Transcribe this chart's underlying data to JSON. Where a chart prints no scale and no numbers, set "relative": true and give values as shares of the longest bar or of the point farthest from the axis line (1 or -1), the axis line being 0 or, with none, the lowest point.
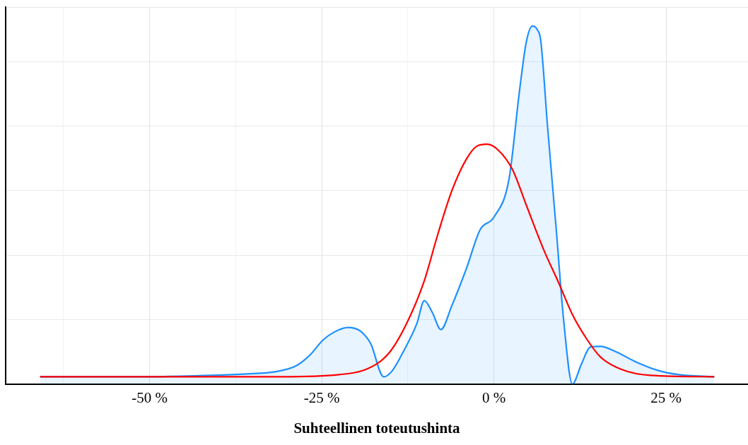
{
  "chart_data": {
    "type": "area",
    "xlabel": "Suhteellinen toteutushinta",
    "relative": true,
    "grid": true,
    "legend": false,
    "marker": "none",
    "xlim": [
      -70.9,
      36.9
    ],
    "xticks": [
      {
        "value": -62.5,
        "label": null
      },
      {
        "value": -50,
        "label": "-50 %"
      },
      {
        "value": -37.5,
        "label": null
      },
      {
        "value": -25,
        "label": "-25 %"
      },
      {
        "value": -12.5,
        "label": null
      },
      {
        "value": 0,
        "label": "0 %"
      },
      {
        "value": 12.5,
        "label": null
      },
      {
        "value": 25,
        "label": "25 %"
      }
    ],
    "series": [
      {
        "type": "area",
        "color": "#1e90ff",
        "x": [
          -65.9,
          -51.3,
          -41.0,
          -35.9,
          -31.8,
          -28.7,
          -26.7,
          -24.8,
          -23.1,
          -21.2,
          -19.4,
          -17.9,
          -16.0,
          -14.8,
          -13.3,
          -11.2,
          -10.1,
          -8.95,
          -7.7,
          -6.1,
          -4.0,
          -2.0,
          0,
          2.2,
          3.7,
          4.7,
          5.6,
          6.3,
          6.8,
          7.8,
          9.1,
          10.1,
          11.4,
          12.7,
          14.0,
          15.5,
          17.6,
          20.7,
          23.8,
          26.9,
          32.0
        ],
        "values": [
          0.02,
          0.02,
          0.024,
          0.028,
          0.034,
          0.051,
          0.081,
          0.123,
          0.146,
          0.158,
          0.148,
          0.113,
          0.02,
          0.036,
          0.085,
          0.168,
          0.233,
          0.2,
          0.152,
          0.219,
          0.322,
          0.431,
          0.466,
          0.573,
          0.816,
          0.955,
          1.0,
          0.99,
          0.96,
          0.717,
          0.421,
          0.184,
          0.0,
          0.055,
          0.103,
          0.105,
          0.091,
          0.061,
          0.038,
          0.026,
          0.02
        ]
      },
      {
        "type": "line",
        "color": "#ff0000",
        "x": [
          -65.9,
          -30.8,
          -22.5,
          -18.4,
          -15.3,
          -12.8,
          -10.2,
          -8.1,
          -6.1,
          -4.0,
          -2.5,
          -1.0,
          0.6,
          2.7,
          4.7,
          7.3,
          9.4,
          11.4,
          13.5,
          15.5,
          18.6,
          22.7,
          32.0
        ],
        "values": [
          0.02,
          0.02,
          0.026,
          0.042,
          0.085,
          0.164,
          0.283,
          0.421,
          0.54,
          0.628,
          0.664,
          0.67,
          0.654,
          0.599,
          0.5,
          0.372,
          0.283,
          0.194,
          0.125,
          0.075,
          0.04,
          0.024,
          0.02
        ]
      }
    ]
  }
}
